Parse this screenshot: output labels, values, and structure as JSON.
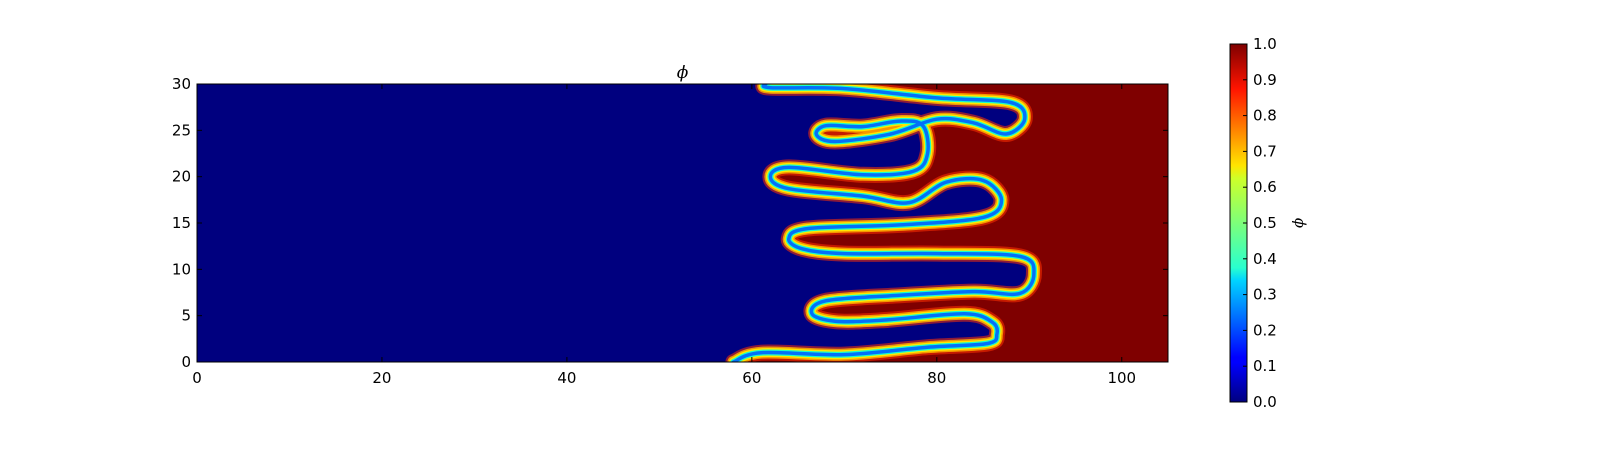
{
  "chart_data": {
    "type": "heatmap",
    "title": "ϕ",
    "xlabel": "",
    "ylabel": "",
    "xlim": [
      0,
      105
    ],
    "ylim": [
      0,
      30
    ],
    "x_ticks": [
      0,
      20,
      40,
      60,
      80,
      100
    ],
    "y_ticks": [
      0,
      5,
      10,
      15,
      20,
      25,
      30
    ],
    "colormap": "jet",
    "colorbar": {
      "label": "ϕ",
      "range": [
        0.0,
        1.0
      ],
      "ticks": [
        "0.0",
        "0.1",
        "0.2",
        "0.3",
        "0.4",
        "0.5",
        "0.6",
        "0.7",
        "0.8",
        "0.9",
        "1.0"
      ]
    },
    "background_value_low": 0.0,
    "background_value_high": 1.0,
    "interface_polyline": [
      [
        58.0,
        0.0
      ],
      [
        61.0,
        1.0
      ],
      [
        70.0,
        0.8
      ],
      [
        79.0,
        1.6
      ],
      [
        85.5,
        2.0
      ],
      [
        86.5,
        3.0
      ],
      [
        86.0,
        4.3
      ],
      [
        83.0,
        5.2
      ],
      [
        74.0,
        4.5
      ],
      [
        69.0,
        4.4
      ],
      [
        66.5,
        5.2
      ],
      [
        68.0,
        6.6
      ],
      [
        76.0,
        7.2
      ],
      [
        84.0,
        7.6
      ],
      [
        89.0,
        7.4
      ],
      [
        90.5,
        9.5
      ],
      [
        89.0,
        11.4
      ],
      [
        80.0,
        11.7
      ],
      [
        70.0,
        11.7
      ],
      [
        65.5,
        12.2
      ],
      [
        64.0,
        13.3
      ],
      [
        66.0,
        14.4
      ],
      [
        76.0,
        14.8
      ],
      [
        85.0,
        15.6
      ],
      [
        87.0,
        17.5
      ],
      [
        85.0,
        19.6
      ],
      [
        81.0,
        19.4
      ],
      [
        77.0,
        17.2
      ],
      [
        72.0,
        17.9
      ],
      [
        64.0,
        18.7
      ],
      [
        62.0,
        20.0
      ],
      [
        64.0,
        21.0
      ],
      [
        72.0,
        20.2
      ],
      [
        77.5,
        20.6
      ],
      [
        79.0,
        22.5
      ],
      [
        78.5,
        25.5
      ],
      [
        76.0,
        26.0
      ],
      [
        72.0,
        25.4
      ],
      [
        68.0,
        25.5
      ],
      [
        67.0,
        24.5
      ],
      [
        69.0,
        23.8
      ],
      [
        75.0,
        24.6
      ],
      [
        80.0,
        26.2
      ],
      [
        84.0,
        25.8
      ],
      [
        87.5,
        24.6
      ],
      [
        89.5,
        26.2
      ],
      [
        88.0,
        28.0
      ],
      [
        80.0,
        28.5
      ],
      [
        70.0,
        29.5
      ],
      [
        62.0,
        29.6
      ],
      [
        61.5,
        30.0
      ]
    ]
  }
}
